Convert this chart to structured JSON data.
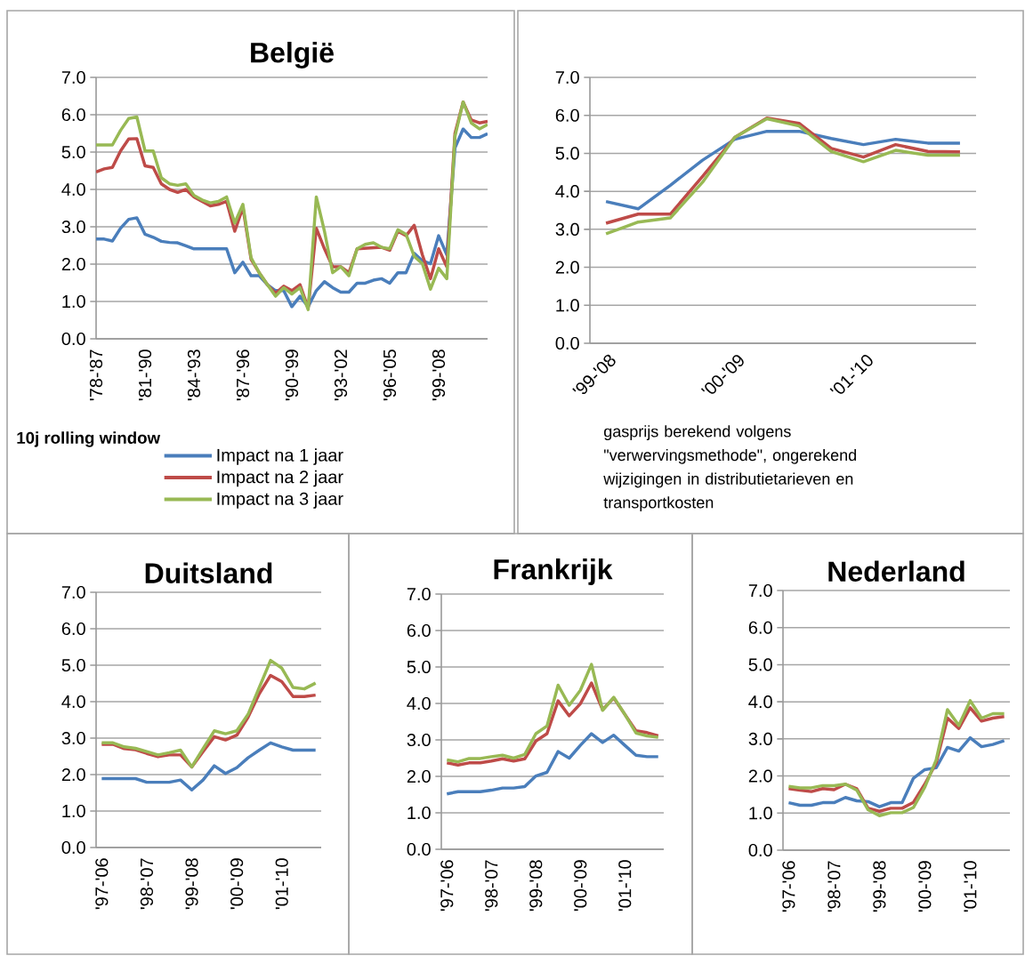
{
  "chart_data": [
    {
      "type": "line",
      "title": "België",
      "annotations": [
        "10j rolling window"
      ],
      "categories": [
        "'78-'87",
        null,
        null,
        null,
        null,
        null,
        "'81-'90",
        null,
        null,
        null,
        null,
        null,
        "'84-'93",
        null,
        null,
        null,
        null,
        null,
        "'87-'96",
        null,
        null,
        null,
        null,
        null,
        "'90-'99",
        null,
        null,
        null,
        null,
        null,
        "'93-'02",
        null,
        null,
        null,
        null,
        null,
        "'96-'05",
        null,
        null,
        null,
        null,
        null,
        "'99-'08",
        null,
        null,
        null,
        null,
        null,
        null
      ],
      "series": [
        {
          "name": "Impact na 1 jaar",
          "color": "#4a7ebb",
          "values": [
            2.67,
            2.67,
            2.62,
            2.96,
            3.2,
            3.24,
            2.8,
            2.72,
            2.61,
            2.58,
            2.57,
            2.49,
            2.41,
            2.41,
            2.41,
            2.41,
            2.41,
            1.77,
            2.05,
            1.69,
            1.69,
            1.45,
            1.29,
            1.29,
            0.86,
            1.14,
            0.86,
            1.29,
            1.53,
            1.37,
            1.25,
            1.25,
            1.49,
            1.49,
            1.57,
            1.61,
            1.49,
            1.77,
            1.77,
            2.29,
            2.09,
            2.01,
            2.76,
            2.25,
            5.11,
            5.62,
            5.39,
            5.39,
            5.49
          ]
        },
        {
          "name": "Impact na 2 jaar",
          "color": "#be4b48",
          "values": [
            4.47,
            4.55,
            4.59,
            5.03,
            5.35,
            5.36,
            4.63,
            4.59,
            4.15,
            4.0,
            3.92,
            4.0,
            3.8,
            3.68,
            3.56,
            3.6,
            3.68,
            2.88,
            3.52,
            2.13,
            1.77,
            1.45,
            1.22,
            1.41,
            1.29,
            1.45,
            0.82,
            2.96,
            2.41,
            1.93,
            1.93,
            1.77,
            2.41,
            null,
            null,
            2.45,
            2.37,
            2.88,
            2.76,
            3.04,
            2.25,
            1.61,
            2.41,
            1.93,
            5.5,
            6.34,
            5.86,
            5.78,
            5.82
          ]
        },
        {
          "name": "Impact na 3 jaar",
          "color": "#98b954",
          "values": [
            5.19,
            5.19,
            5.19,
            5.58,
            5.9,
            5.94,
            5.03,
            5.03,
            4.31,
            4.15,
            4.11,
            4.15,
            3.84,
            3.72,
            3.64,
            3.68,
            3.8,
            3.1,
            3.6,
            2.17,
            1.77,
            1.45,
            1.14,
            1.37,
            1.2,
            1.37,
            0.78,
            3.8,
            2.88,
            1.77,
            1.93,
            1.69,
            2.41,
            2.53,
            2.57,
            2.45,
            2.41,
            2.92,
            2.8,
            2.21,
            2.01,
            1.33,
            1.89,
            1.61,
            5.42,
            6.34,
            5.78,
            5.62,
            5.74
          ]
        }
      ],
      "ylim": [
        0,
        7
      ],
      "yticks": [
        {
          "value": 0,
          "label": "0.0"
        },
        {
          "value": 1,
          "label": "1.0"
        },
        {
          "value": 2,
          "label": "2.0"
        },
        {
          "value": 3,
          "label": "3.0"
        },
        {
          "value": 4,
          "label": "4.0"
        },
        {
          "value": 5,
          "label": "5.0"
        },
        {
          "value": 6,
          "label": "6.0"
        },
        {
          "value": 7,
          "label": "7.0"
        }
      ],
      "grid": "y",
      "legend": "bottom"
    },
    {
      "type": "line",
      "annotations": [
        "gasprijs berekend volgens \"verwervingsmethode\",  ongerekend wijzigingen in distributietarieven en transportkosten"
      ],
      "categories": [
        "'99-'08",
        null,
        null,
        null,
        "'00-'09",
        null,
        null,
        null,
        "'01-'10",
        null,
        null,
        null
      ],
      "series": [
        {
          "color": "#4a7ebb",
          "values": [
            3.73,
            3.54,
            4.16,
            4.82,
            5.37,
            5.58,
            5.58,
            5.39,
            5.23,
            5.37,
            5.27,
            5.27
          ]
        },
        {
          "color": "#be4b48",
          "values": [
            3.16,
            3.4,
            3.4,
            4.39,
            5.42,
            5.93,
            5.79,
            5.13,
            4.9,
            5.23,
            5.05,
            5.04
          ]
        },
        {
          "color": "#98b954",
          "values": [
            2.88,
            3.19,
            3.3,
            4.24,
            5.42,
            5.91,
            5.72,
            5.05,
            4.78,
            5.08,
            4.95,
            4.95
          ]
        }
      ],
      "ylim": [
        0,
        7
      ],
      "yticks": [
        {
          "value": 0,
          "label": "0.0"
        },
        {
          "value": 1,
          "label": "1.0"
        },
        {
          "value": 2,
          "label": "2.0"
        },
        {
          "value": 3,
          "label": "3.0"
        },
        {
          "value": 4,
          "label": "4.0"
        },
        {
          "value": 5,
          "label": "5.0"
        },
        {
          "value": 6,
          "label": "6.0"
        },
        {
          "value": 7,
          "label": "7.0"
        }
      ],
      "grid": "y"
    },
    {
      "type": "line",
      "title": "Duitsland",
      "categories": [
        "'97-'06",
        null,
        null,
        null,
        "'98-'07",
        null,
        null,
        null,
        "'99-'08",
        null,
        null,
        null,
        "'00-'09",
        null,
        null,
        null,
        "'01-'10",
        null,
        null,
        null
      ],
      "series": [
        {
          "color": "#4a7ebb",
          "values": [
            1.89,
            1.89,
            1.89,
            1.89,
            1.79,
            1.79,
            1.79,
            1.85,
            1.58,
            1.85,
            2.24,
            2.03,
            2.19,
            2.46,
            2.67,
            2.87,
            2.76,
            2.67,
            2.67,
            2.67
          ]
        },
        {
          "color": "#be4b48",
          "values": [
            2.83,
            2.83,
            2.71,
            2.68,
            2.58,
            2.49,
            2.54,
            2.54,
            2.21,
            2.63,
            3.04,
            2.95,
            3.08,
            3.57,
            4.22,
            4.72,
            4.55,
            4.14,
            4.14,
            4.18
          ]
        },
        {
          "color": "#98b954",
          "values": [
            2.87,
            2.87,
            2.76,
            2.72,
            2.63,
            2.54,
            2.6,
            2.67,
            2.21,
            2.71,
            3.2,
            3.12,
            3.2,
            3.65,
            4.39,
            5.13,
            4.92,
            4.39,
            4.35,
            4.51
          ]
        }
      ],
      "ylim": [
        0,
        7
      ],
      "yticks": [
        {
          "value": 0,
          "label": "0.0"
        },
        {
          "value": 1,
          "label": "1.0"
        },
        {
          "value": 2,
          "label": "2.0"
        },
        {
          "value": 3,
          "label": "3.0"
        },
        {
          "value": 4,
          "label": "4.0"
        },
        {
          "value": 5,
          "label": "5.0"
        },
        {
          "value": 6,
          "label": "6.0"
        },
        {
          "value": 7,
          "label": "7.0"
        }
      ],
      "grid": "y"
    },
    {
      "type": "line",
      "title": "Frankrijk",
      "categories": [
        "'97-'06",
        null,
        null,
        null,
        "'98-'07",
        null,
        null,
        null,
        "'99-'08",
        null,
        null,
        null,
        "'00-'09",
        null,
        null,
        null,
        "'01-'10",
        null,
        null,
        null
      ],
      "series": [
        {
          "color": "#4a7ebb",
          "values": [
            1.52,
            1.58,
            1.58,
            1.58,
            1.62,
            1.68,
            1.68,
            1.72,
            2.01,
            2.11,
            2.68,
            2.5,
            2.85,
            3.17,
            2.93,
            3.13,
            2.85,
            2.58,
            2.54,
            2.54
          ]
        },
        {
          "color": "#be4b48",
          "values": [
            2.37,
            2.31,
            2.37,
            2.37,
            2.42,
            2.48,
            2.42,
            2.48,
            2.97,
            3.17,
            4.07,
            3.66,
            3.99,
            4.56,
            3.83,
            4.15,
            3.7,
            3.25,
            3.2,
            3.11
          ]
        },
        {
          "color": "#98b954",
          "values": [
            2.45,
            2.4,
            2.49,
            2.49,
            2.54,
            2.58,
            2.5,
            2.6,
            3.17,
            3.38,
            4.5,
            3.95,
            4.36,
            5.07,
            3.81,
            4.17,
            3.7,
            3.19,
            3.11,
            3.07
          ]
        }
      ],
      "ylim": [
        0,
        7
      ],
      "yticks": [
        {
          "value": 0,
          "label": "0.0"
        },
        {
          "value": 1,
          "label": "1.0"
        },
        {
          "value": 2,
          "label": "2.0"
        },
        {
          "value": 3,
          "label": "3.0"
        },
        {
          "value": 4,
          "label": "4.0"
        },
        {
          "value": 5,
          "label": "5.0"
        },
        {
          "value": 6,
          "label": "6.0"
        },
        {
          "value": 7,
          "label": "7.0"
        }
      ],
      "grid": "y"
    },
    {
      "type": "line",
      "title": "Nederland",
      "categories": [
        "'97-'06",
        null,
        null,
        null,
        "'98-'07",
        null,
        null,
        null,
        "'99-'08",
        null,
        null,
        null,
        "'00-'09",
        null,
        null,
        null,
        "'01-'10",
        null,
        null,
        null
      ],
      "series": [
        {
          "color": "#4a7ebb",
          "values": [
            1.28,
            1.21,
            1.21,
            1.28,
            1.28,
            1.42,
            1.33,
            1.31,
            1.17,
            1.28,
            1.28,
            1.94,
            2.17,
            2.22,
            2.77,
            2.67,
            3.03,
            2.79,
            2.85,
            2.95
          ]
        },
        {
          "color": "#be4b48",
          "values": [
            1.66,
            1.62,
            1.58,
            1.66,
            1.63,
            1.78,
            1.66,
            1.13,
            1.05,
            1.13,
            1.13,
            1.29,
            1.78,
            2.35,
            3.56,
            3.28,
            3.84,
            3.48,
            3.56,
            3.6
          ]
        },
        {
          "color": "#98b954",
          "values": [
            1.72,
            1.68,
            1.68,
            1.74,
            1.74,
            1.78,
            1.62,
            1.09,
            0.93,
            1.01,
            1.01,
            1.15,
            1.7,
            2.43,
            3.79,
            3.36,
            4.03,
            3.56,
            3.68,
            3.68
          ]
        }
      ],
      "ylim": [
        0,
        7
      ],
      "yticks": [
        {
          "value": 0,
          "label": "0.0"
        },
        {
          "value": 1,
          "label": "1.0"
        },
        {
          "value": 2,
          "label": "2.0"
        },
        {
          "value": 3,
          "label": "3.0"
        },
        {
          "value": 4,
          "label": "4.0"
        },
        {
          "value": 5,
          "label": "5.0"
        },
        {
          "value": 6,
          "label": "6.0"
        },
        {
          "value": 7,
          "label": "7.0"
        }
      ],
      "grid": "y"
    }
  ]
}
